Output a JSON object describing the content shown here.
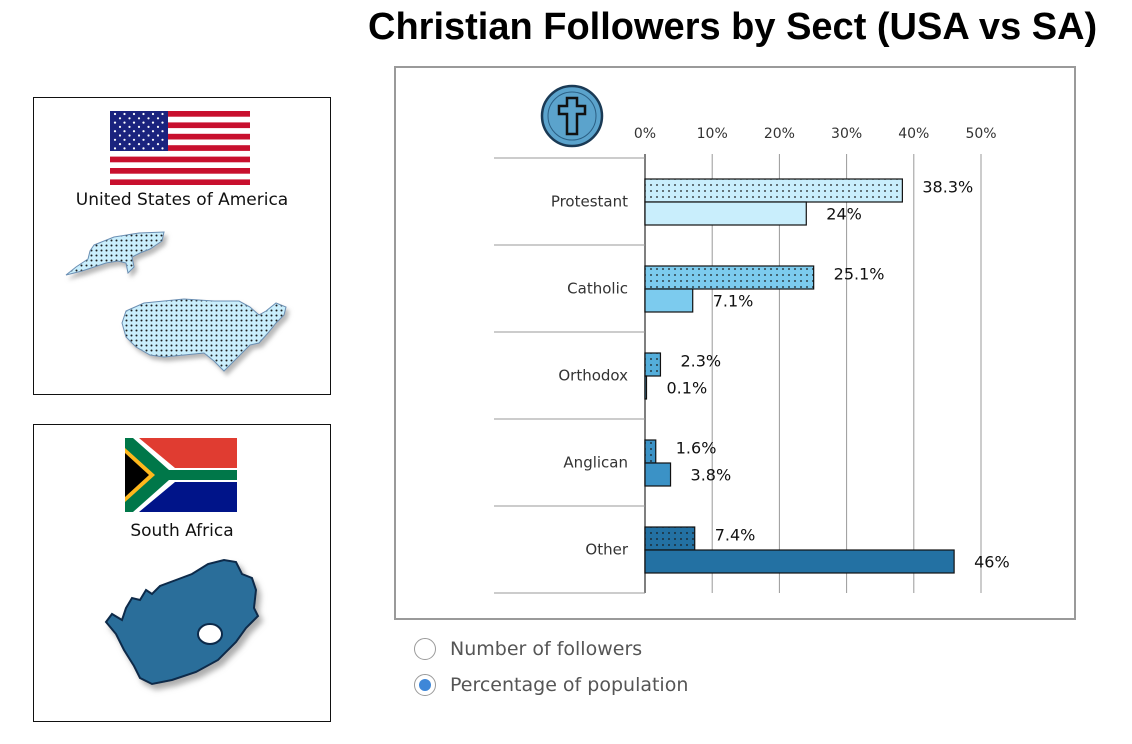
{
  "page_title": "Christian Followers by Sect (USA vs SA)",
  "countries": {
    "usa": {
      "label": "United States of America",
      "flag": "us-flag-icon",
      "map": "usa-map-icon"
    },
    "sa": {
      "label": "South Africa",
      "flag": "south-africa-flag-icon",
      "map": "south-africa-map-icon"
    }
  },
  "chart_icon": "cross-icon",
  "chart_data": {
    "type": "bar",
    "orientation": "horizontal",
    "categories": [
      "Protestant",
      "Catholic",
      "Orthodox",
      "Anglican",
      "Other"
    ],
    "series": [
      {
        "key": "usa",
        "values": [
          38.3,
          25.1,
          2.3,
          1.6,
          7.4
        ],
        "labels": [
          "38.3%",
          "25.1%",
          "2.3%",
          "1.6%",
          "7.4%"
        ],
        "pattern": "dotted"
      },
      {
        "key": "sa",
        "values": [
          24,
          7.1,
          0.1,
          3.8,
          46
        ],
        "labels": [
          "24%",
          "7.1%",
          "0.1%",
          "3.8%",
          "46%"
        ],
        "pattern": "solid"
      }
    ],
    "xticks": [
      "0%",
      "10%",
      "20%",
      "30%",
      "40%",
      "50%"
    ],
    "xlim": [
      0,
      50
    ],
    "category_colors": [
      "#c9eefc",
      "#7ccbee",
      "#54aedb",
      "#3b92c6",
      "#2371a3"
    ],
    "grid": true,
    "axis_position": "top"
  },
  "radio_options": [
    {
      "label": "Number of followers",
      "checked": false
    },
    {
      "label": "Percentage of population",
      "checked": true
    }
  ],
  "colors": {
    "radio_accent": "#3e87d8",
    "sa_map": "#2a6e9a",
    "usa_map": "#c9eefc"
  }
}
